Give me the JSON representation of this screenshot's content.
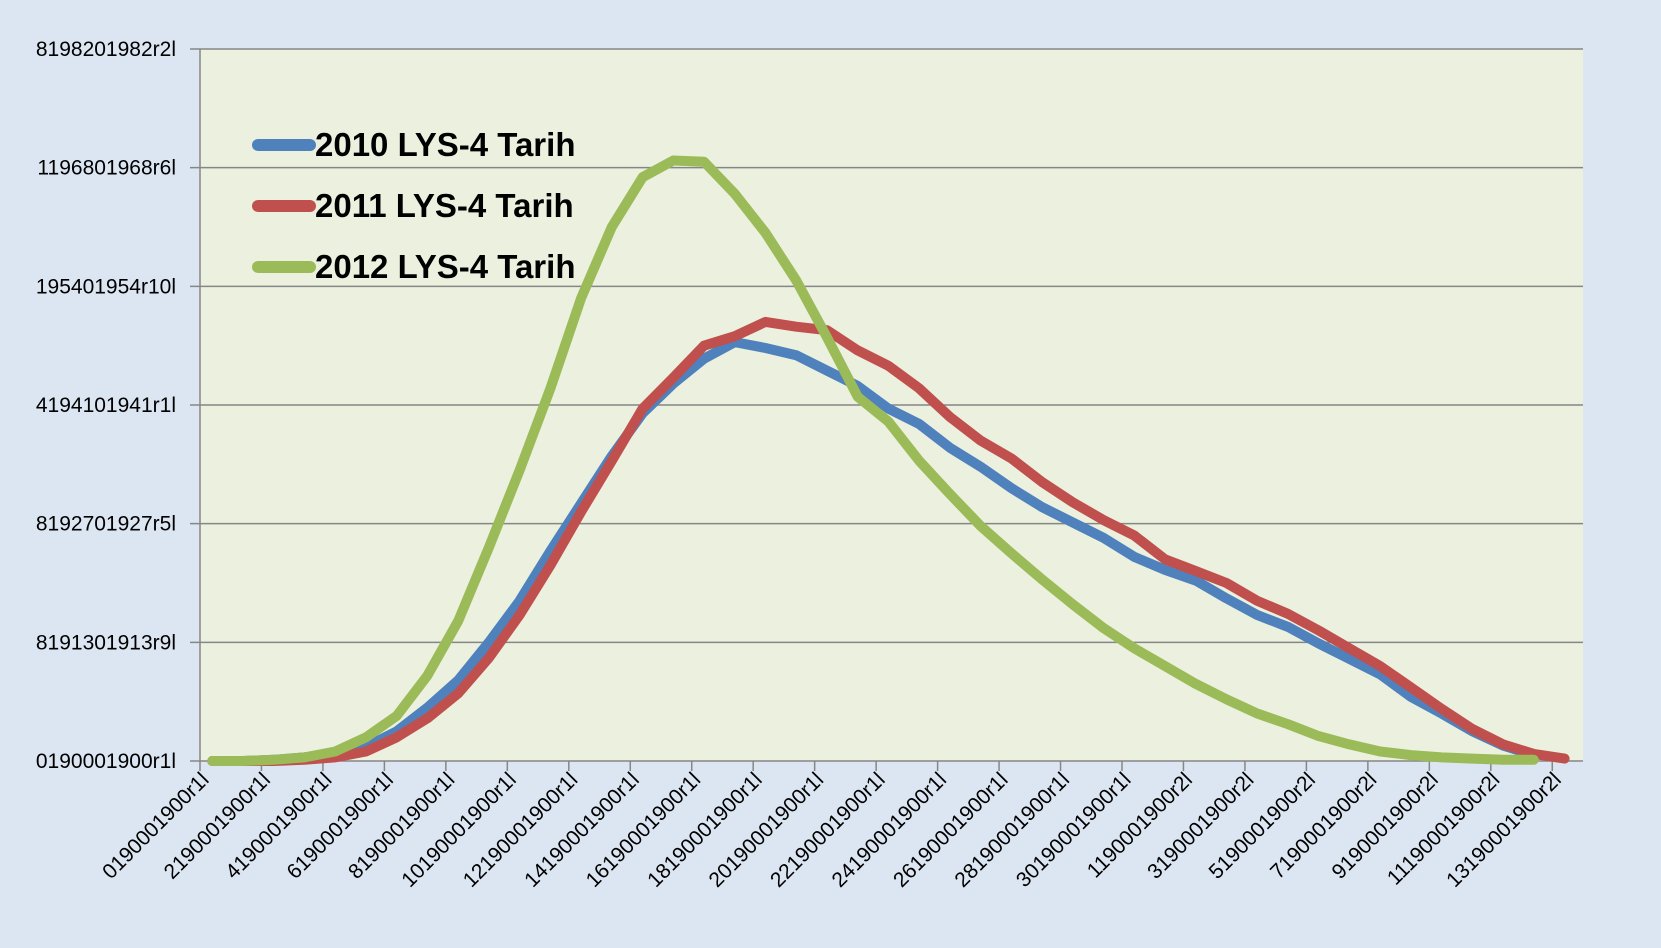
{
  "chart_data": {
    "type": "line",
    "categories": [
      "0190001900r1l",
      null,
      "2190001900r1l",
      null,
      "4190001900r1l",
      null,
      "6190001900r1l",
      null,
      "8190001900r1l",
      null,
      "10190001900r1l",
      null,
      "12190001900r1l",
      null,
      "14190001900r1l",
      null,
      "16190001900r1l",
      null,
      "18190001900r1l",
      null,
      "20190001900r1l",
      null,
      "22190001900r1l",
      null,
      "24190001900r1l",
      null,
      "26190001900r1l",
      null,
      "28190001900r1l",
      null,
      "30190001900r1l",
      null,
      "1190001900r2l",
      null,
      "3190001900r2l",
      null,
      "5190001900r2l",
      null,
      "7190001900r2l",
      null,
      "9190001900r2l",
      null,
      "11190001900r2l",
      null,
      "13190001900r2l"
    ],
    "series": [
      {
        "name": "2010 LYS-4 Tarih",
        "color": "#4f81bd",
        "values": [
          0,
          0,
          0.01,
          0.03,
          0.06,
          0.12,
          0.25,
          0.45,
          0.68,
          1.0,
          1.35,
          1.77,
          2.17,
          2.57,
          2.93,
          3.18,
          3.39,
          3.53,
          3.48,
          3.42,
          3.29,
          3.16,
          2.97,
          2.84,
          2.64,
          2.48,
          2.3,
          2.14,
          2.01,
          1.88,
          1.72,
          1.61,
          1.52,
          1.37,
          1.23,
          1.13,
          0.99,
          0.86,
          0.73,
          0.54,
          0.4,
          0.25,
          0.13,
          0.05,
          null
        ]
      },
      {
        "name": "2011 LYS-4 Tarih",
        "color": "#c0504d",
        "values": [
          0,
          0,
          0,
          0.01,
          0.03,
          0.08,
          0.2,
          0.36,
          0.57,
          0.87,
          1.23,
          1.65,
          2.1,
          2.53,
          2.97,
          3.23,
          3.5,
          3.58,
          3.7,
          3.66,
          3.63,
          3.46,
          3.33,
          3.14,
          2.9,
          2.7,
          2.55,
          2.35,
          2.18,
          2.03,
          1.9,
          1.7,
          1.6,
          1.5,
          1.35,
          1.24,
          1.1,
          0.95,
          0.8,
          0.62,
          0.44,
          0.27,
          0.14,
          0.06,
          0.02
        ]
      },
      {
        "name": "2012 LYS-4 Tarih",
        "color": "#9bbb59",
        "values": [
          0,
          0,
          0.01,
          0.03,
          0.08,
          0.2,
          0.38,
          0.72,
          1.18,
          1.8,
          2.45,
          3.14,
          3.9,
          4.5,
          4.92,
          5.06,
          5.05,
          4.78,
          4.45,
          4.05,
          3.57,
          3.07,
          2.86,
          2.53,
          2.25,
          1.98,
          1.75,
          1.53,
          1.32,
          1.12,
          0.95,
          0.8,
          0.65,
          0.52,
          0.4,
          0.31,
          0.21,
          0.14,
          0.08,
          0.05,
          0.03,
          0.02,
          0.01,
          0.01,
          null
        ]
      }
    ],
    "ylim": [
      0,
      6
    ],
    "yticks": [
      {
        "value": 0,
        "label": "0190001900r1l"
      },
      {
        "value": 1,
        "label": "8191301913r9l"
      },
      {
        "value": 2,
        "label": "8192701927r5l"
      },
      {
        "value": 3,
        "label": "4194101941r1l"
      },
      {
        "value": 4,
        "label": "195401954r10l"
      },
      {
        "value": 5,
        "label": "1196801968r6l"
      },
      {
        "value": 6,
        "label": "8198201982r2l"
      }
    ],
    "grid": true,
    "legend": "upper left"
  }
}
